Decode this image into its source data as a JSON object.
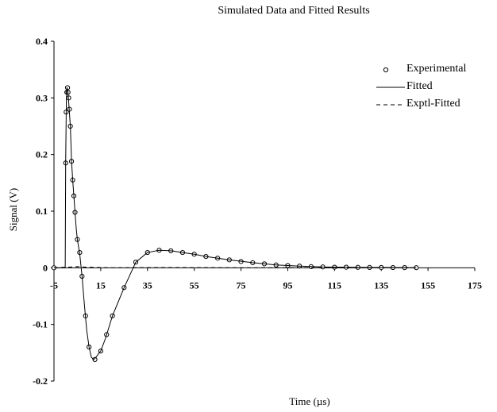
{
  "chart_data": {
    "type": "scatter",
    "title": "Simulated Data and Fitted Results",
    "xlabel": "Time (µs)",
    "ylabel": "Signal (V)",
    "xlim": [
      -5,
      175
    ],
    "ylim": [
      -0.2,
      0.4
    ],
    "x_ticks": [
      "-5",
      "15",
      "35",
      "55",
      "75",
      "95",
      "115",
      "135",
      "155",
      "175"
    ],
    "y_ticks": [
      "0.4",
      "0.3",
      "0.2",
      "0.1",
      "0",
      "-0.1",
      "-0.2"
    ],
    "grid": false,
    "legend": "top-right",
    "series": [
      {
        "name": "Experimental",
        "style": "hollow-circle",
        "x": [
          -5,
          0,
          0.2,
          0.5,
          0.8,
          1,
          1.3,
          1.6,
          2,
          2.5,
          3,
          3.5,
          4,
          5,
          6,
          7,
          8.5,
          10,
          12.5,
          15,
          17.5,
          20,
          25,
          30,
          35,
          40,
          45,
          50,
          55,
          60,
          65,
          70,
          75,
          80,
          85,
          90,
          95,
          100,
          105,
          110,
          115,
          120,
          125,
          130,
          135,
          140,
          145,
          150
        ],
        "y": [
          0,
          0.185,
          0.275,
          0.31,
          0.318,
          0.31,
          0.3,
          0.28,
          0.25,
          0.188,
          0.155,
          0.127,
          0.098,
          0.05,
          0.027,
          -0.015,
          -0.085,
          -0.14,
          -0.162,
          -0.147,
          -0.118,
          -0.085,
          -0.035,
          0.01,
          0.027,
          0.031,
          0.03,
          0.027,
          0.024,
          0.02,
          0.017,
          0.014,
          0.011,
          0.009,
          0.007,
          0.005,
          0.004,
          0.003,
          0.002,
          0.0015,
          0.001,
          0.001,
          0.0008,
          0.0006,
          0.0005,
          0.0004,
          0.0003,
          0.0002
        ]
      },
      {
        "name": "Fitted",
        "style": "solid",
        "x": [
          -5,
          -0.2,
          0,
          0.3,
          0.6,
          1,
          1.5,
          2,
          2.5,
          3,
          3.5,
          4,
          4.5,
          5,
          6,
          7,
          8,
          9,
          10,
          11,
          12,
          13,
          14,
          15,
          17,
          20,
          25,
          30,
          35,
          40,
          45,
          50,
          55,
          60,
          70,
          80,
          90,
          100,
          110,
          120,
          130,
          140,
          150
        ],
        "y": [
          0,
          0,
          0.185,
          0.3,
          0.318,
          0.31,
          0.28,
          0.25,
          0.19,
          0.155,
          0.127,
          0.098,
          0.07,
          0.05,
          0.025,
          -0.015,
          -0.065,
          -0.11,
          -0.14,
          -0.158,
          -0.162,
          -0.158,
          -0.152,
          -0.147,
          -0.125,
          -0.085,
          -0.035,
          0.01,
          0.027,
          0.031,
          0.03,
          0.027,
          0.024,
          0.02,
          0.014,
          0.009,
          0.005,
          0.003,
          0.0015,
          0.001,
          0.0006,
          0.0004,
          0.0002
        ]
      },
      {
        "name": "Exptl-Fitted",
        "style": "dashed",
        "x": [
          -5,
          0,
          5,
          10,
          20,
          40,
          60,
          80,
          100,
          120,
          140,
          150
        ],
        "y": [
          0,
          0.001,
          0.002,
          0.001,
          0.0,
          0.0005,
          0.0003,
          0.0,
          0.0002,
          0.0,
          0.0001,
          0
        ]
      }
    ]
  }
}
